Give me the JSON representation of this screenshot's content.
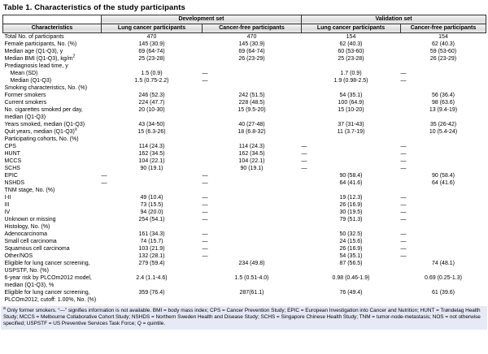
{
  "title": "Table 1. Characteristics of the study participants",
  "colors": {
    "header_shading": "#e0e0e0",
    "footnote_background": "#e7eaf6",
    "border": "#333333",
    "text": "#000000"
  },
  "table": {
    "groups": [
      "Development set",
      "Validation set"
    ],
    "columns": [
      "Characteristics",
      "Lung cancer participants",
      "Cancer-free participants",
      "Lung cancer participants",
      "Cancer-free participants"
    ],
    "dash_meaning": "information is not available",
    "rows": [
      {
        "label": "Total No. of participants",
        "values": [
          "470",
          "470",
          "154",
          "154"
        ]
      },
      {
        "label": "Female participants, No. (%)",
        "values": [
          "145 (30.9)",
          "145 (30.9)",
          "62 (40.3)",
          "62 (40.3)"
        ]
      },
      {
        "label": "Median age (Q1-Q3), y",
        "values": [
          "69 (64-74)",
          "69 (64-74)",
          "60 (53-60)",
          "59 (53-60)"
        ]
      },
      {
        "label": "Median BMI (Q1-Q3), kg/m",
        "label_sup": "2",
        "values": [
          "25 (23-28)",
          "26 (23-29)",
          "25 (23-28)",
          "26 (23-29)"
        ]
      },
      {
        "label": "Prediagnosis lead time, y",
        "section": true,
        "values": [
          "",
          "",
          "",
          ""
        ]
      },
      {
        "label": "Mean (SD)",
        "indent": true,
        "values": [
          "1.5 (0.9)",
          "—",
          "1.7 (0.9)",
          "—"
        ]
      },
      {
        "label": "Median (Q1-Q3)",
        "indent": true,
        "values": [
          "1.5 (0.75-2.2)",
          "—",
          "1.9 (0.98-2.5)",
          "—"
        ]
      },
      {
        "label": "Smoking characteristics, No. (%)",
        "section": true,
        "values": [
          "",
          "",
          "",
          ""
        ]
      },
      {
        "label": "Former smokers",
        "values": [
          "246 (52.3)",
          "242 (51.5)",
          "54 (35.1)",
          "56 (36.4)"
        ]
      },
      {
        "label": "Current smokers",
        "values": [
          "224 (47.7)",
          "228 (48.5)",
          "100 (64.9)",
          "98 (63.6)"
        ]
      },
      {
        "label": "No. cigarettes smoked per day, median (Q1-Q3)",
        "values": [
          "20 (10-30)",
          "15 (9.5-20)",
          "15 (10-20)",
          "13 (9.4-19)"
        ]
      },
      {
        "label": "Years smoked, median (Q1-Q3)",
        "values": [
          "43 (34-50)",
          "40 (27-48)",
          "37 (31-43)",
          "35 (26-42)"
        ]
      },
      {
        "label": "Quit years, median (Q1-Q3)",
        "label_sup": "a",
        "values": [
          "15 (6.3-26)",
          "18 (6.8-32)",
          "11 (3.7-19)",
          "10 (5.4-24)"
        ]
      },
      {
        "label": "Participating cohorts, No. (%)",
        "section": true,
        "values": [
          "",
          "",
          "",
          ""
        ]
      },
      {
        "label": "CPS",
        "values": [
          "114 (24.3)",
          "114 (24.3)",
          "—",
          "—"
        ]
      },
      {
        "label": "HUNT",
        "values": [
          "162 (34.5)",
          "162 (34.5)",
          "—",
          "—"
        ]
      },
      {
        "label": "MCCS",
        "values": [
          "104 (22.1)",
          "104 (22.1)",
          "—",
          "—"
        ]
      },
      {
        "label": "SCHS",
        "values": [
          "90 (19.1)",
          "90 (19.1)",
          "—",
          "—"
        ]
      },
      {
        "label": "EPIC",
        "values": [
          "—",
          "—",
          "90 (58.4)",
          "90 (58.4)"
        ]
      },
      {
        "label": "NSHDS",
        "values": [
          "—",
          "—",
          "64 (41.6)",
          "64 (41.6)"
        ]
      },
      {
        "label": "TNM stage, No. (%)",
        "section": true,
        "values": [
          "",
          "",
          "",
          ""
        ]
      },
      {
        "label": "I-II",
        "values": [
          "49 (10.4)",
          "—",
          "19 (12.3)",
          "—"
        ]
      },
      {
        "label": "III",
        "values": [
          "73 (15.5)",
          "—",
          "26 (16.9)",
          "—"
        ]
      },
      {
        "label": "IV",
        "values": [
          "94 (20.0)",
          "—",
          "30 (19.5)",
          "—"
        ]
      },
      {
        "label": "Unknown or missing",
        "values": [
          "254 (54.1)",
          "—",
          "79 (51.3)",
          "—"
        ]
      },
      {
        "label": "Histology, No. (%)",
        "section": true,
        "values": [
          "",
          "",
          "",
          ""
        ]
      },
      {
        "label": "Adenocarcinoma",
        "values": [
          "161 (34.3)",
          "—",
          "50 (32.5)",
          "—"
        ]
      },
      {
        "label": "Small cell carcinoma",
        "values": [
          "74 (15.7)",
          "—",
          "24 (15.6)",
          "—"
        ]
      },
      {
        "label": "Squamous cell carcinoma",
        "values": [
          "103 (21.9)",
          "—",
          "26 (16.9)",
          "—"
        ]
      },
      {
        "label": "Other/NOS",
        "values": [
          "132 (28.1)",
          "—",
          "54 (35.1)",
          "—"
        ]
      },
      {
        "label": "Eligible for lung cancer screening, USPSTF, No. (%)",
        "values": [
          "279 (59.4)",
          "234 (49.8)",
          "87 (56.5)",
          "74 (48.1)"
        ]
      },
      {
        "label": "6-year risk by PLCOm2012 model, median (Q1-Q3), %",
        "values": [
          "2.4 (1.1-4.6)",
          "1.5 (0.51-4.0)",
          "0.98 (0.46-1.9)",
          "0.69 (0.25-1.3)"
        ]
      },
      {
        "label": "Eligible for lung cancer screening, PLCOm2012, cutoff: 1.00%, No. (%)",
        "values": [
          "359 (76.4)",
          "287(61.1)",
          "76 (49.4)",
          "61 (39.6)"
        ]
      }
    ]
  },
  "footnote": {
    "marker": "a",
    "text": " Only former smokers. “—” signifies information is not available. BMI = body mass index; CPS = Cancer Prevention Study; EPIC = European Investigation into Cancer and Nutrition; HUNT = Trøndelag Health Study; MCCS = Melbourne Collaborative Cohort Study; NSHDS = Northern Sweden Health and Disease Study; SCHS = Singapore Chinese Health Study; TNM = tumor-node-metastasis; NOS = not otherwise specified; USPSTF = US Preventive Services Task Force; Q = quintile."
  }
}
